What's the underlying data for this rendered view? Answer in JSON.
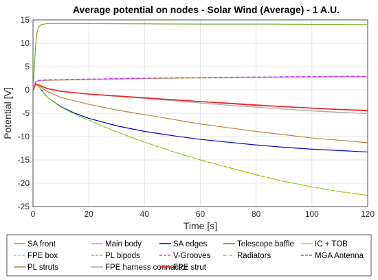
{
  "chart_data": {
    "type": "line",
    "title": "Average potential on nodes - Solar Wind (Average) - 1 A.U.",
    "xlabel": "Time [s]",
    "ylabel": "Potential [V]",
    "xlim": [
      0,
      120
    ],
    "ylim": [
      -25,
      15
    ],
    "xticks": [
      0,
      20,
      40,
      60,
      80,
      100,
      120
    ],
    "yticks": [
      15,
      10,
      5,
      0,
      -5,
      -10,
      -15,
      -20,
      -25
    ],
    "grid": true,
    "legend_position": "bottom",
    "series": [
      {
        "name": "SA front",
        "color": "#77ac30",
        "dash": "solid",
        "x": [
          0,
          0.5,
          1,
          1.5,
          2,
          3,
          5,
          10,
          20,
          40,
          60,
          80,
          100,
          120
        ],
        "y": [
          0,
          5,
          10,
          12.5,
          13.5,
          14,
          14.2,
          14.25,
          14.2,
          14.15,
          14.1,
          14.1,
          14.05,
          14.0
        ]
      },
      {
        "name": "Main body",
        "color": "#ff66ff",
        "dash": "solid",
        "x": [
          0,
          1,
          2,
          5,
          10,
          20,
          40,
          60,
          80,
          100,
          120
        ],
        "y": [
          0,
          1.7,
          2.0,
          2.1,
          2.15,
          2.25,
          2.45,
          2.6,
          2.7,
          2.8,
          2.85
        ]
      },
      {
        "name": "SA edges",
        "color": "#0000cc",
        "dash": "solid",
        "x": [
          0,
          1,
          2,
          5,
          10,
          15,
          20,
          30,
          40,
          50,
          60,
          70,
          80,
          90,
          100,
          110,
          120
        ],
        "y": [
          0,
          1.2,
          0.8,
          -1.5,
          -3.6,
          -5.0,
          -6.1,
          -7.7,
          -8.9,
          -9.8,
          -10.6,
          -11.2,
          -11.8,
          -12.3,
          -12.7,
          -13.0,
          -13.3
        ]
      },
      {
        "name": "Telescope baffle",
        "color": "#d95319",
        "dash": "solid",
        "x": [
          0,
          1,
          2,
          5,
          10,
          20,
          30,
          40,
          50,
          60,
          70,
          80,
          90,
          100,
          110,
          120
        ],
        "y": [
          0,
          1.2,
          1.1,
          0.3,
          -0.3,
          -0.9,
          -1.3,
          -1.7,
          -2.1,
          -2.5,
          -2.8,
          -3.2,
          -3.6,
          -3.9,
          -4.2,
          -4.5
        ]
      },
      {
        "name": "IC + TOB",
        "color": "#c8b46e",
        "dash": "solid",
        "x": [
          0,
          1,
          2,
          5,
          10,
          20,
          40,
          60,
          80,
          100,
          120
        ],
        "y": [
          0,
          1.7,
          1.9,
          2.0,
          2.1,
          2.2,
          2.4,
          2.55,
          2.65,
          2.75,
          2.8
        ]
      },
      {
        "name": "FPE box",
        "color": "#66ddee",
        "dash": "dash",
        "x": [
          0,
          1,
          2,
          5,
          10,
          20,
          40,
          60,
          80,
          100,
          120
        ],
        "y": [
          0,
          1.8,
          2.05,
          2.15,
          2.2,
          2.3,
          2.5,
          2.65,
          2.75,
          2.85,
          2.9
        ]
      },
      {
        "name": "PL bipods",
        "color": "#66cc33",
        "dash": "dash",
        "x": [
          0,
          1,
          2,
          5,
          10,
          15,
          20,
          30,
          40,
          50,
          60,
          70,
          80,
          90,
          100,
          110,
          120
        ],
        "y": [
          0,
          1.2,
          0.8,
          -1.5,
          -3.7,
          -5.2,
          -6.5,
          -9.0,
          -11.2,
          -13.2,
          -15.0,
          -16.6,
          -18.2,
          -19.6,
          -20.8,
          -21.8,
          -22.6
        ]
      },
      {
        "name": "V-Grooves",
        "color": "#ff3399",
        "dash": "dash",
        "x": [
          0,
          1,
          2,
          5,
          10,
          20,
          40,
          60,
          80,
          100,
          120
        ],
        "y": [
          0,
          1.8,
          2.05,
          2.15,
          2.2,
          2.3,
          2.5,
          2.65,
          2.75,
          2.85,
          2.9
        ]
      },
      {
        "name": "Radiators",
        "color": "#99cc00",
        "dash": "dashdot",
        "x": [
          0,
          1,
          2,
          5,
          10,
          15,
          20,
          30,
          40,
          50,
          60,
          70,
          80,
          90,
          100,
          110,
          120
        ],
        "y": [
          0,
          1.2,
          0.8,
          -1.5,
          -3.7,
          -5.2,
          -6.5,
          -9.0,
          -11.2,
          -13.2,
          -15.0,
          -16.6,
          -18.2,
          -19.6,
          -20.8,
          -21.8,
          -22.6
        ]
      },
      {
        "name": "MGA Antenna",
        "color": "#bb33ff",
        "dash": "dash",
        "x": [
          0,
          1,
          2,
          5,
          10,
          20,
          40,
          60,
          80,
          100,
          120
        ],
        "y": [
          0,
          1.8,
          2.05,
          2.15,
          2.2,
          2.3,
          2.5,
          2.65,
          2.75,
          2.85,
          2.9
        ]
      },
      {
        "name": "PL struts",
        "color": "#b8863b",
        "dash": "solid",
        "x": [
          0,
          1,
          2,
          5,
          10,
          20,
          30,
          40,
          50,
          60,
          70,
          80,
          90,
          100,
          110,
          120
        ],
        "y": [
          0,
          1.3,
          1.0,
          -0.3,
          -1.6,
          -3.1,
          -4.3,
          -5.3,
          -6.3,
          -7.3,
          -8.1,
          -8.9,
          -9.6,
          -10.3,
          -10.8,
          -11.3
        ]
      },
      {
        "name": "FPE harness connector",
        "color": "#a6a6a6",
        "dash": "solid",
        "x": [
          0,
          1,
          2,
          5,
          10,
          20,
          30,
          40,
          50,
          60,
          70,
          80,
          90,
          100,
          110,
          120
        ],
        "y": [
          0,
          1.2,
          1.1,
          0.3,
          -0.3,
          -0.9,
          -1.4,
          -1.8,
          -2.3,
          -2.8,
          -3.3,
          -3.7,
          -4.1,
          -4.5,
          -4.8,
          -5.1
        ]
      },
      {
        "name": "FPE strut",
        "color": "#ee2222",
        "dash": "solid",
        "x": [
          0,
          1,
          2,
          5,
          10,
          20,
          30,
          40,
          50,
          60,
          70,
          80,
          90,
          100,
          110,
          120
        ],
        "y": [
          0,
          1.2,
          1.1,
          0.3,
          -0.3,
          -0.9,
          -1.3,
          -1.7,
          -2.1,
          -2.5,
          -2.9,
          -3.3,
          -3.6,
          -3.9,
          -4.2,
          -4.4
        ]
      }
    ]
  }
}
